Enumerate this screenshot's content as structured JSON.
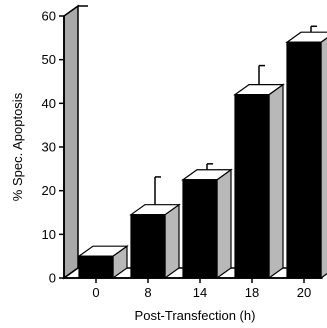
{
  "chart_data": {
    "type": "bar",
    "title": "",
    "xlabel": "Post-Transfection (h)",
    "ylabel": "% Spec. Apoptosis",
    "categories": [
      "0",
      "8",
      "14",
      "18",
      "20"
    ],
    "values": [
      5,
      14.5,
      22.5,
      42,
      54
    ],
    "error_upper": [
      6,
      22,
      25,
      47.5,
      56.5
    ],
    "ylim": [
      0,
      60
    ],
    "yticks": [
      0,
      10,
      20,
      30,
      40,
      50,
      60
    ],
    "grid": false,
    "legend": "none",
    "style": "3d-bars",
    "colors": {
      "bar_front": "#000000",
      "bar_side": "#b8b8b8",
      "bar_top": "#ffffff",
      "wall": "#a9a9a9",
      "axis": "#000000"
    }
  }
}
